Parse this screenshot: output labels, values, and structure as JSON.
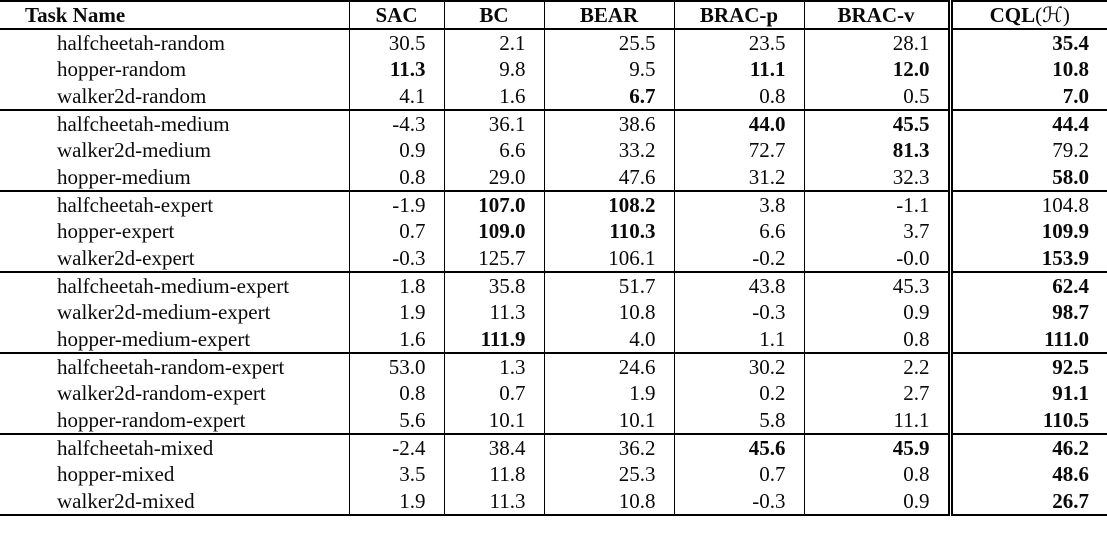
{
  "table": {
    "columns": [
      "Task Name",
      "SAC",
      "BC",
      "BEAR",
      "BRAC-p",
      "BRAC-v"
    ],
    "cql_header": {
      "prefix": "CQL",
      "arg": "(ℋ)"
    },
    "groups": [
      {
        "rows": [
          {
            "task": "halfcheetah-random",
            "values": [
              "30.5",
              "2.1",
              "25.5",
              "23.5",
              "28.1",
              "35.4"
            ],
            "bold": [
              false,
              false,
              false,
              false,
              false,
              true
            ]
          },
          {
            "task": "hopper-random",
            "values": [
              "11.3",
              "9.8",
              "9.5",
              "11.1",
              "12.0",
              "10.8"
            ],
            "bold": [
              true,
              false,
              false,
              true,
              true,
              true
            ]
          },
          {
            "task": "walker2d-random",
            "values": [
              "4.1",
              "1.6",
              "6.7",
              "0.8",
              "0.5",
              "7.0"
            ],
            "bold": [
              false,
              false,
              true,
              false,
              false,
              true
            ]
          }
        ]
      },
      {
        "rows": [
          {
            "task": "halfcheetah-medium",
            "values": [
              "-4.3",
              "36.1",
              "38.6",
              "44.0",
              "45.5",
              "44.4"
            ],
            "bold": [
              false,
              false,
              false,
              true,
              true,
              true
            ]
          },
          {
            "task": "walker2d-medium",
            "values": [
              "0.9",
              "6.6",
              "33.2",
              "72.7",
              "81.3",
              "79.2"
            ],
            "bold": [
              false,
              false,
              false,
              false,
              true,
              false
            ]
          },
          {
            "task": "hopper-medium",
            "values": [
              "0.8",
              "29.0",
              "47.6",
              "31.2",
              "32.3",
              "58.0"
            ],
            "bold": [
              false,
              false,
              false,
              false,
              false,
              true
            ]
          }
        ]
      },
      {
        "rows": [
          {
            "task": "halfcheetah-expert",
            "values": [
              "-1.9",
              "107.0",
              "108.2",
              "3.8",
              "-1.1",
              "104.8"
            ],
            "bold": [
              false,
              true,
              true,
              false,
              false,
              false
            ]
          },
          {
            "task": "hopper-expert",
            "values": [
              "0.7",
              "109.0",
              "110.3",
              "6.6",
              "3.7",
              "109.9"
            ],
            "bold": [
              false,
              true,
              true,
              false,
              false,
              true
            ]
          },
          {
            "task": "walker2d-expert",
            "values": [
              "-0.3",
              "125.7",
              "106.1",
              "-0.2",
              "-0.0",
              "153.9"
            ],
            "bold": [
              false,
              false,
              false,
              false,
              false,
              true
            ]
          }
        ]
      },
      {
        "rows": [
          {
            "task": "halfcheetah-medium-expert",
            "values": [
              "1.8",
              "35.8",
              "51.7",
              "43.8",
              "45.3",
              "62.4"
            ],
            "bold": [
              false,
              false,
              false,
              false,
              false,
              true
            ]
          },
          {
            "task": "walker2d-medium-expert",
            "values": [
              "1.9",
              "11.3",
              "10.8",
              "-0.3",
              "0.9",
              "98.7"
            ],
            "bold": [
              false,
              false,
              false,
              false,
              false,
              true
            ]
          },
          {
            "task": "hopper-medium-expert",
            "values": [
              "1.6",
              "111.9",
              "4.0",
              "1.1",
              "0.8",
              "111.0"
            ],
            "bold": [
              false,
              true,
              false,
              false,
              false,
              true
            ]
          }
        ]
      },
      {
        "rows": [
          {
            "task": "halfcheetah-random-expert",
            "values": [
              "53.0",
              "1.3",
              "24.6",
              "30.2",
              "2.2",
              "92.5"
            ],
            "bold": [
              false,
              false,
              false,
              false,
              false,
              true
            ]
          },
          {
            "task": "walker2d-random-expert",
            "values": [
              "0.8",
              "0.7",
              "1.9",
              "0.2",
              "2.7",
              "91.1"
            ],
            "bold": [
              false,
              false,
              false,
              false,
              false,
              true
            ]
          },
          {
            "task": "hopper-random-expert",
            "values": [
              "5.6",
              "10.1",
              "10.1",
              "5.8",
              "11.1",
              "110.5"
            ],
            "bold": [
              false,
              false,
              false,
              false,
              false,
              true
            ]
          }
        ]
      },
      {
        "rows": [
          {
            "task": "halfcheetah-mixed",
            "values": [
              "-2.4",
              "38.4",
              "36.2",
              "45.6",
              "45.9",
              "46.2"
            ],
            "bold": [
              false,
              false,
              false,
              true,
              true,
              true
            ]
          },
          {
            "task": "hopper-mixed",
            "values": [
              "3.5",
              "11.8",
              "25.3",
              "0.7",
              "0.8",
              "48.6"
            ],
            "bold": [
              false,
              false,
              false,
              false,
              false,
              true
            ]
          },
          {
            "task": "walker2d-mixed",
            "values": [
              "1.9",
              "11.3",
              "10.8",
              "-0.3",
              "0.9",
              "26.7"
            ],
            "bold": [
              false,
              false,
              false,
              false,
              false,
              true
            ]
          }
        ]
      }
    ]
  }
}
